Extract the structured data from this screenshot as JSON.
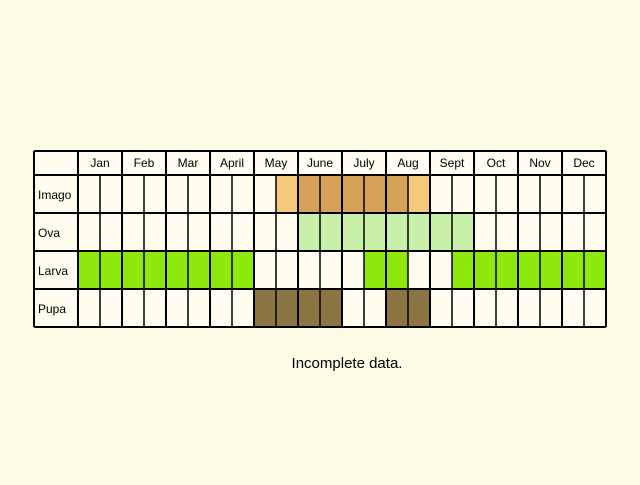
{
  "months": [
    "Jan",
    "Feb",
    "Mar",
    "Apr",
    "May",
    "Jun",
    "Jul",
    "Aug",
    "Sep",
    "Oct",
    "Nov",
    "Dec"
  ],
  "month_labels": [
    "Jan",
    "Feb",
    "Mar",
    "April",
    "May",
    "June",
    "July",
    "Aug",
    "Sept",
    "Oct",
    "Nov",
    "Dec"
  ],
  "stages": [
    {
      "label": "Imago",
      "color": "#d6a25a",
      "light_color": "#f3c97c",
      "cells": [
        0,
        0,
        0,
        0,
        0,
        0,
        0,
        0,
        0,
        0,
        0,
        0,
        0,
        0,
        0,
        0,
        0,
        0,
        0,
        0,
        0,
        0,
        0,
        0
      ]
    },
    {
      "label": "Ova",
      "color": "#c8f0a8",
      "light_color": "#c8f0a8",
      "cells": [
        0,
        0,
        0,
        0,
        0,
        0,
        0,
        0,
        0,
        0,
        0,
        0,
        0,
        0,
        0,
        0,
        0,
        0,
        0,
        0,
        0,
        0,
        0,
        0
      ]
    },
    {
      "label": "Larva",
      "color": "#8ee80c",
      "light_color": "#8ee80c",
      "cells": [
        0,
        0,
        0,
        0,
        0,
        0,
        0,
        0,
        0,
        0,
        0,
        0,
        0,
        0,
        0,
        0,
        0,
        0,
        0,
        0,
        0,
        0,
        0,
        0
      ]
    },
    {
      "label": "Pupa",
      "color": "#8b7542",
      "light_color": "#8b7542",
      "cells": [
        0,
        0,
        0,
        0,
        0,
        0,
        0,
        0,
        0,
        0,
        0,
        0,
        0,
        0,
        0,
        0,
        0,
        0,
        0,
        0,
        0,
        0,
        0,
        0
      ]
    }
  ],
  "chart_data": {
    "type": "table",
    "columns": [
      "Jan",
      "Feb",
      "Mar",
      "April",
      "May",
      "June",
      "July",
      "Aug",
      "Sept",
      "Oct",
      "Nov",
      "Dec"
    ],
    "rows": [
      {
        "stage": "Imago",
        "active_half_months": [
          9,
          10,
          11,
          12,
          13,
          14,
          15
        ],
        "partial_half_months": [
          9,
          15,
          16
        ]
      },
      {
        "stage": "Ova",
        "active_half_months": [
          10,
          11,
          12,
          13,
          14,
          15,
          16,
          17
        ],
        "partial_half_months": []
      },
      {
        "stage": "Larva",
        "active_half_months": [
          0,
          1,
          2,
          3,
          4,
          5,
          6,
          7,
          13,
          14,
          17,
          18,
          19,
          20,
          21,
          22,
          23
        ],
        "partial_half_months": [
          13,
          14,
          15
        ]
      },
      {
        "stage": "Pupa",
        "active_half_months": [
          8,
          9,
          10,
          11,
          14,
          15
        ],
        "partial_half_months": [
          8
        ]
      }
    ],
    "unit": "half-month"
  },
  "note": "Incomplete data."
}
